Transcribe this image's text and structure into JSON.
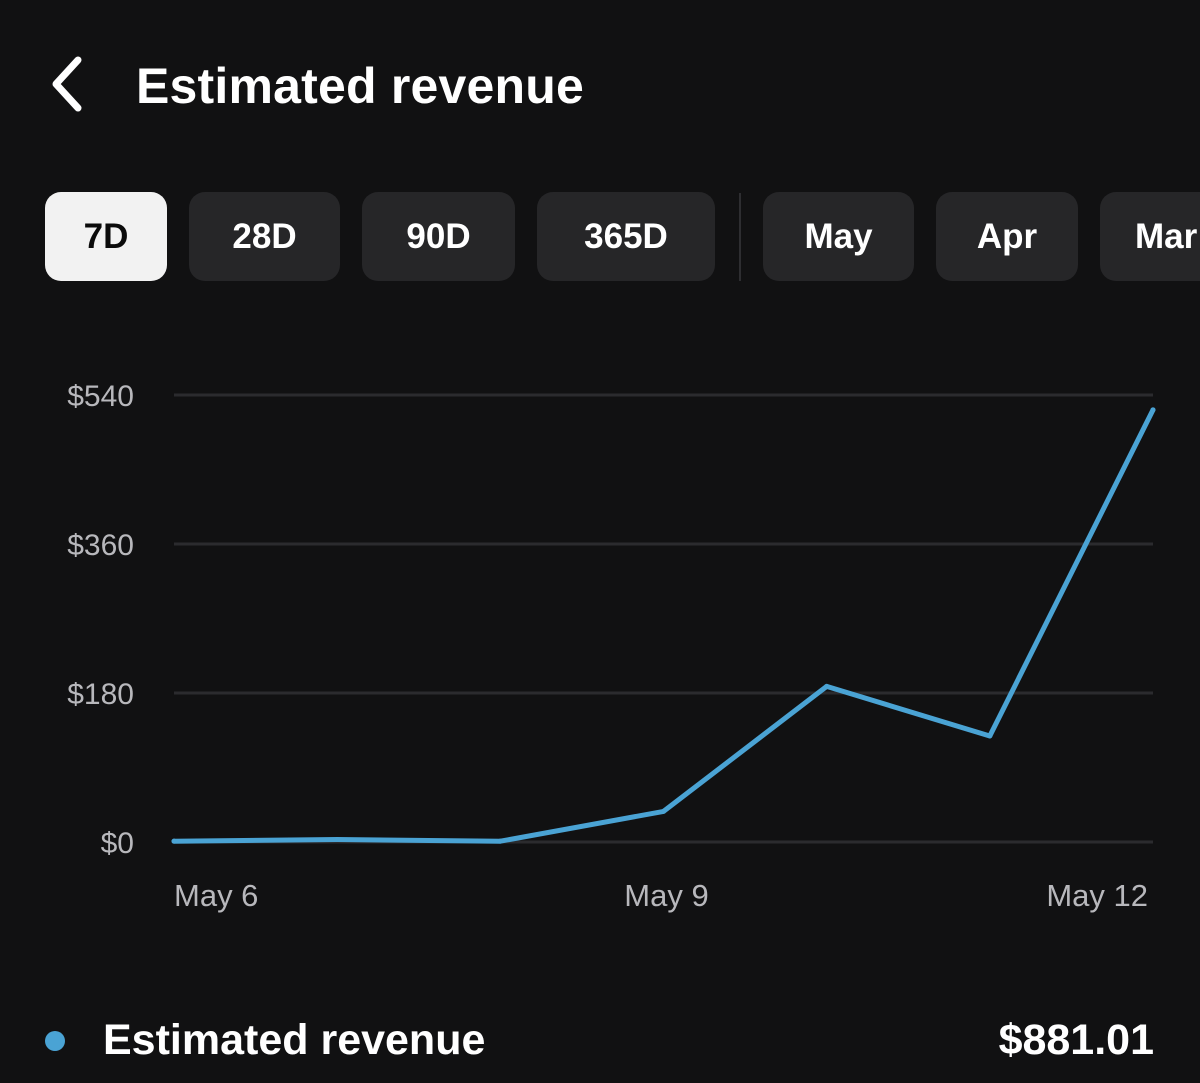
{
  "header": {
    "back_icon": "chevron-left-icon",
    "title": "Estimated revenue"
  },
  "tabs": [
    {
      "label": "7D",
      "active": true
    },
    {
      "label": "28D",
      "active": false
    },
    {
      "label": "90D",
      "active": false
    },
    {
      "label": "365D",
      "active": false
    }
  ],
  "month_tabs": [
    {
      "label": "May",
      "active": false
    },
    {
      "label": "Apr",
      "active": false
    },
    {
      "label": "Mar",
      "active": false
    }
  ],
  "colors": {
    "background": "#111112",
    "line": "#4aa3d4",
    "gridline": "#2b2b2e",
    "tick_text": "#b8b8bc",
    "tab_bg": "#262628",
    "tab_active_bg": "#f2f2f2"
  },
  "chart_data": {
    "type": "line",
    "title": "",
    "xlabel": "",
    "ylabel": "",
    "x_ticks": [
      "May 6",
      "May 9",
      "May 12"
    ],
    "y_ticks": [
      "$0",
      "$180",
      "$360",
      "$540"
    ],
    "ylim": [
      0,
      540
    ],
    "grid": true,
    "series": [
      {
        "name": "Estimated revenue",
        "x": [
          6,
          7,
          8,
          9,
          10,
          11,
          12
        ],
        "values": [
          1,
          3,
          1,
          37,
          188,
          128,
          522
        ]
      }
    ]
  },
  "summary": {
    "label": "Estimated revenue",
    "value": "$881.01"
  }
}
